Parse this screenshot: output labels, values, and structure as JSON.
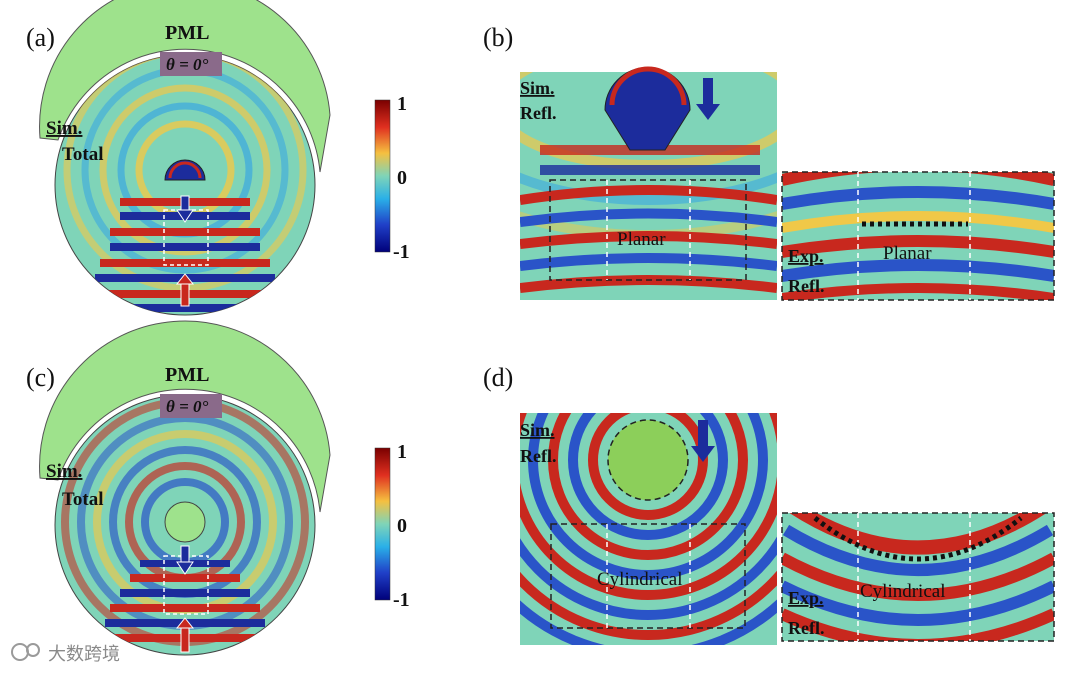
{
  "panels": {
    "a": {
      "label": "(a)",
      "pml": "PML",
      "theta": "θ = 0°",
      "sim": "Sim.",
      "total": "Total"
    },
    "b": {
      "label": "(b)",
      "sim": "Sim.",
      "refl": "Refl.",
      "planar_sim": "Planar",
      "exp": "Exp.",
      "refl_exp": "Refl.",
      "planar_exp": "Planar"
    },
    "c": {
      "label": "(c)",
      "pml": "PML",
      "theta": "θ = 0°",
      "sim": "Sim.",
      "total": "Total"
    },
    "d": {
      "label": "(d)",
      "sim": "Sim.",
      "refl": "Refl.",
      "cyl_sim": "Cylindrical",
      "exp": "Exp.",
      "refl_exp": "Refl.",
      "cyl_exp": "Cylindrical"
    }
  },
  "colorbar": {
    "max": "1",
    "mid": "0",
    "min": "-1"
  },
  "watermark": "大数跨境",
  "colors": {
    "pml": "#9ee28c",
    "field_bg": "#7fd4b8",
    "red": "#c8281e",
    "blue": "#1c2c9c",
    "yellow": "#f1d94a"
  }
}
